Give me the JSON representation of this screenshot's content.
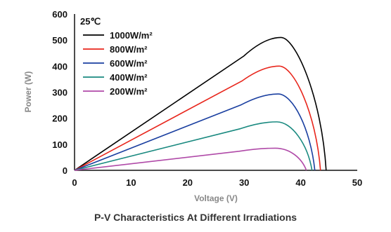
{
  "chart_data": {
    "type": "line",
    "title": "",
    "annotation": "25℃",
    "xlabel": "Voltage  (V)",
    "ylabel": "Power (W)",
    "caption": "P-V Characteristics At Different Irradiations",
    "xlim": [
      0,
      50
    ],
    "ylim": [
      0,
      600
    ],
    "xticks": [
      "0",
      "10",
      "20",
      "30",
      "40",
      "50"
    ],
    "yticks": [
      "0",
      "100",
      "200",
      "300",
      "400",
      "500",
      "600"
    ],
    "grid": false,
    "legend_position": "top-left",
    "series": [
      {
        "name": "1000W/m²",
        "color": "#000000",
        "vmp": 36.5,
        "pmax": 510,
        "voc": 44.5
      },
      {
        "name": "800W/m²",
        "color": "#e8261c",
        "vmp": 36.2,
        "pmax": 400,
        "voc": 43.5
      },
      {
        "name": "600W/m²",
        "color": "#1a3fa0",
        "vmp": 36.0,
        "pmax": 293,
        "voc": 42.5
      },
      {
        "name": "400W/m²",
        "color": "#1a8a80",
        "vmp": 35.8,
        "pmax": 186,
        "voc": 42.0
      },
      {
        "name": "200W/m²",
        "color": "#b04aa8",
        "vmp": 35.5,
        "pmax": 85,
        "voc": 41.0
      }
    ]
  }
}
